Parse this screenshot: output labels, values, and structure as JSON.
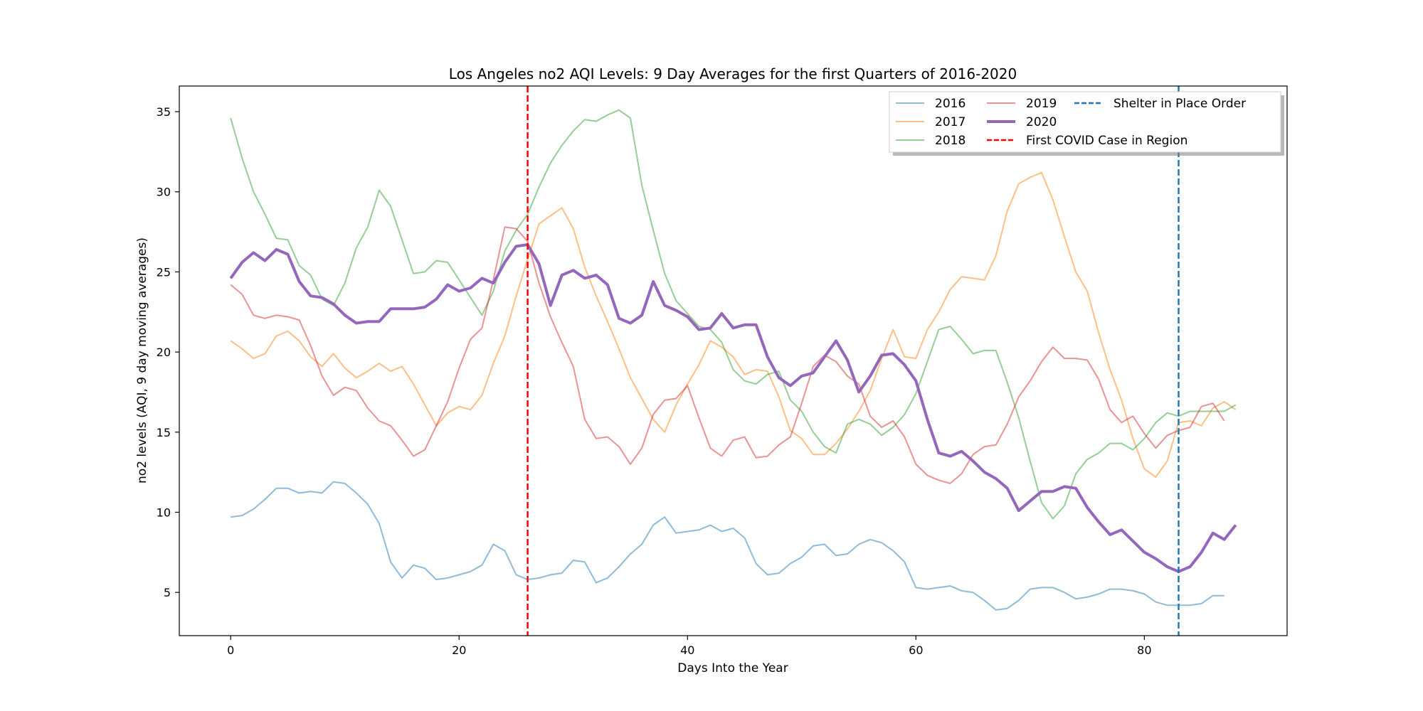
{
  "chart_data": {
    "type": "line",
    "title": "Los Angeles no2 AQI Levels: 9 Day Averages for the first Quarters of 2016-2020",
    "xlabel": "Days Into the Year",
    "ylabel": "no2 levels (AQI, 9 day moving averages)",
    "xlim": [
      -4.5,
      92.5
    ],
    "ylim": [
      2.3,
      36.6
    ],
    "xticks": [
      0,
      20,
      40,
      60,
      80
    ],
    "yticks": [
      5,
      10,
      15,
      20,
      25,
      30,
      35
    ],
    "grid": false,
    "legend_position": "top-right",
    "series": [
      {
        "name": "2016",
        "color": "#1f77b4",
        "alpha": 0.5,
        "width": 2,
        "values": [
          9.7,
          9.8,
          10.2,
          10.8,
          11.5,
          11.5,
          11.2,
          11.3,
          11.2,
          11.9,
          11.8,
          11.2,
          10.5,
          9.3,
          6.9,
          5.9,
          6.7,
          6.5,
          5.8,
          5.9,
          6.1,
          6.3,
          6.7,
          8.0,
          7.6,
          6.1,
          5.8,
          5.9,
          6.1,
          6.2,
          7.0,
          6.9,
          5.6,
          5.9,
          6.6,
          7.4,
          8.0,
          9.2,
          9.7,
          8.7,
          8.8,
          8.9,
          9.2,
          8.8,
          9.0,
          8.4,
          6.8,
          6.1,
          6.2,
          6.8,
          7.2,
          7.9,
          8.0,
          7.3,
          7.4,
          8.0,
          8.3,
          8.1,
          7.6,
          6.9,
          5.3,
          5.2,
          5.3,
          5.4,
          5.1,
          5.0,
          4.5,
          3.9,
          4.0,
          4.5,
          5.2,
          5.3,
          5.3,
          5.0,
          4.6,
          4.7,
          4.9,
          5.2,
          5.2,
          5.1,
          4.9,
          4.4,
          4.2,
          4.2,
          4.2,
          4.3,
          4.8,
          4.8
        ]
      },
      {
        "name": "2017",
        "color": "#ff7f0e",
        "alpha": 0.5,
        "width": 2,
        "values": [
          20.7,
          20.2,
          19.6,
          19.9,
          21.0,
          21.3,
          20.7,
          19.7,
          19.1,
          19.9,
          19.0,
          18.4,
          18.8,
          19.3,
          18.8,
          19.1,
          18.0,
          16.7,
          15.4,
          16.2,
          16.6,
          16.4,
          17.3,
          19.3,
          21.0,
          23.5,
          25.8,
          28.0,
          28.5,
          29.0,
          27.7,
          25.3,
          23.5,
          21.9,
          20.2,
          18.4,
          17.1,
          15.8,
          15.0,
          16.7,
          18.0,
          19.2,
          20.7,
          20.3,
          19.7,
          18.6,
          18.9,
          18.8,
          17.2,
          15.1,
          14.6,
          13.6,
          13.6,
          14.3,
          15.2,
          16.3,
          17.6,
          19.6,
          21.4,
          19.7,
          19.6,
          21.4,
          22.5,
          23.9,
          24.7,
          24.6,
          24.5,
          26.0,
          28.8,
          30.5,
          30.9,
          31.2,
          29.5,
          27.2,
          25.0,
          23.8,
          21.2,
          18.9,
          17.0,
          14.6,
          12.7,
          12.2,
          13.2,
          15.6,
          15.7,
          15.4,
          16.5,
          16.9,
          16.4
        ]
      },
      {
        "name": "2018",
        "color": "#2ca02c",
        "alpha": 0.5,
        "width": 2,
        "values": [
          34.6,
          32.1,
          30.0,
          28.6,
          27.1,
          27.0,
          25.4,
          24.8,
          23.3,
          22.9,
          24.3,
          26.5,
          27.8,
          30.1,
          29.1,
          27.0,
          24.9,
          25.0,
          25.7,
          25.6,
          24.5,
          23.4,
          22.3,
          23.8,
          26.3,
          27.6,
          28.6,
          30.3,
          31.8,
          32.9,
          33.8,
          34.5,
          34.4,
          34.8,
          35.1,
          34.6,
          30.4,
          27.6,
          24.9,
          23.2,
          22.4,
          21.6,
          21.4,
          20.6,
          18.9,
          18.2,
          18.0,
          18.6,
          18.8,
          17.0,
          16.3,
          15.0,
          14.1,
          13.7,
          15.5,
          15.8,
          15.5,
          14.8,
          15.3,
          16.1,
          17.4,
          19.4,
          21.4,
          21.6,
          20.8,
          19.9,
          20.1,
          20.1,
          18.1,
          15.9,
          13.2,
          10.6,
          9.6,
          10.4,
          12.4,
          13.3,
          13.7,
          14.3,
          14.3,
          13.9,
          14.6,
          15.6,
          16.2,
          16.0,
          16.3,
          16.3,
          16.3,
          16.3,
          16.7
        ]
      },
      {
        "name": "2019",
        "color": "#d62728",
        "alpha": 0.5,
        "width": 2,
        "values": [
          24.2,
          23.6,
          22.3,
          22.1,
          22.3,
          22.2,
          22.0,
          20.4,
          18.5,
          17.3,
          17.8,
          17.6,
          16.5,
          15.7,
          15.4,
          14.5,
          13.5,
          13.9,
          15.4,
          16.9,
          19.0,
          20.8,
          21.5,
          24.5,
          27.8,
          27.7,
          26.9,
          24.3,
          22.2,
          20.6,
          19.1,
          15.8,
          14.6,
          14.7,
          14.1,
          13.0,
          14.0,
          16.1,
          17.0,
          17.1,
          17.9,
          15.9,
          14.0,
          13.5,
          14.5,
          14.7,
          13.4,
          13.5,
          14.2,
          14.7,
          16.8,
          19.1,
          19.8,
          19.4,
          18.5,
          18.0,
          16.0,
          15.3,
          15.7,
          14.7,
          13.0,
          12.3,
          12.0,
          11.8,
          12.4,
          13.6,
          14.1,
          14.2,
          15.5,
          17.2,
          18.2,
          19.4,
          20.3,
          19.6,
          19.6,
          19.5,
          18.3,
          16.4,
          15.6,
          16.0,
          14.9,
          14.0,
          14.8,
          15.1,
          15.3,
          16.6,
          16.8,
          15.7
        ]
      },
      {
        "name": "2020",
        "color": "#9467bd",
        "alpha": 1,
        "width": 4,
        "values": [
          24.6,
          25.6,
          26.2,
          25.7,
          26.4,
          26.1,
          24.4,
          23.5,
          23.4,
          23.0,
          22.3,
          21.8,
          21.9,
          21.9,
          22.7,
          22.7,
          22.7,
          22.8,
          23.3,
          24.2,
          23.8,
          24.0,
          24.6,
          24.3,
          25.6,
          26.6,
          26.7,
          25.5,
          22.9,
          24.8,
          25.1,
          24.6,
          24.8,
          24.2,
          22.1,
          21.8,
          22.3,
          24.4,
          22.9,
          22.6,
          22.2,
          21.4,
          21.5,
          22.4,
          21.5,
          21.7,
          21.7,
          19.7,
          18.4,
          17.9,
          18.5,
          18.7,
          19.7,
          20.7,
          19.5,
          17.5,
          18.5,
          19.8,
          19.9,
          19.2,
          18.2,
          15.8,
          13.7,
          13.5,
          13.8,
          13.2,
          12.5,
          12.1,
          11.5,
          10.1,
          10.7,
          11.3,
          11.3,
          11.6,
          11.5,
          10.3,
          9.4,
          8.6,
          8.9,
          8.2,
          7.5,
          7.1,
          6.6,
          6.3,
          6.6,
          7.5,
          8.7,
          8.3,
          9.2
        ]
      }
    ],
    "reference_lines": [
      {
        "name": "First COVID Case in Region",
        "x": 26,
        "color": "#ff0000"
      },
      {
        "name": "Shelter in Place Order",
        "x": 83,
        "color": "#1f77b4"
      }
    ]
  }
}
